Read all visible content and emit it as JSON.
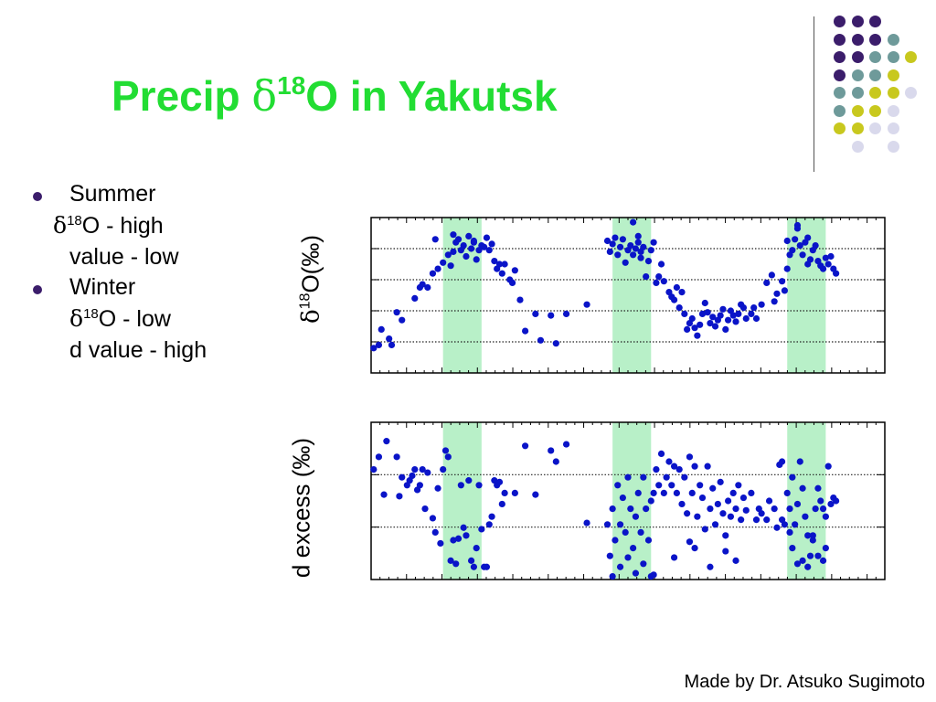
{
  "slide": {
    "title": {
      "prefix": "Precip ",
      "delta": "δ",
      "sup": "18",
      "suffix": "O in Yakutsk"
    },
    "bullets": [
      {
        "label": "Summer",
        "lines": [
          {
            "delta": "δ",
            "sup": "18",
            "text": "O - high"
          },
          {
            "text": "value - low"
          }
        ]
      },
      {
        "label": "Winter",
        "lines": [
          {
            "delta": "δ",
            "sup": "18",
            "text": "O - low"
          },
          {
            "text": "d value - high"
          }
        ]
      }
    ],
    "credit": "Made by Dr. Atsuko Sugimoto",
    "decorative_dot_colors": [
      "#3b1d6b",
      "#6e9a9a",
      "#c8c81e",
      "#d9d9ec"
    ]
  },
  "chart_data": [
    {
      "type": "scatter",
      "ylabel": {
        "delta": "δ",
        "sup": "18",
        "text": "O(‰)"
      },
      "xlim": [
        0,
        100
      ],
      "ylim": [
        0,
        100
      ],
      "grid": "y-dotted",
      "marker_color": "#0a14c8",
      "highlight_color": "#b8f0c8",
      "highlight_x": [
        [
          14,
          21.5
        ],
        [
          47,
          54.5
        ],
        [
          81,
          88.5
        ]
      ],
      "points": [
        [
          0.5,
          16
        ],
        [
          1.5,
          18
        ],
        [
          2,
          28
        ],
        [
          3.5,
          22
        ],
        [
          4,
          18
        ],
        [
          5,
          39
        ],
        [
          6,
          34
        ],
        [
          8.5,
          48
        ],
        [
          9.5,
          55
        ],
        [
          10,
          57
        ],
        [
          11,
          55
        ],
        [
          12,
          64
        ],
        [
          13,
          67
        ],
        [
          14,
          71
        ],
        [
          15,
          76
        ],
        [
          15.5,
          69
        ],
        [
          16,
          78
        ],
        [
          16.5,
          84
        ],
        [
          17,
          86
        ],
        [
          17.5,
          79
        ],
        [
          18,
          82
        ],
        [
          18.5,
          75
        ],
        [
          19,
          88
        ],
        [
          19.5,
          80
        ],
        [
          20,
          84
        ],
        [
          20.5,
          73
        ],
        [
          21,
          79
        ],
        [
          21.5,
          82
        ],
        [
          22,
          81
        ],
        [
          22.5,
          87
        ],
        [
          23,
          79
        ],
        [
          23.5,
          83
        ],
        [
          24,
          72
        ],
        [
          24.5,
          67
        ],
        [
          25,
          70
        ],
        [
          25.5,
          64
        ],
        [
          26,
          70
        ],
        [
          27,
          60
        ],
        [
          27.5,
          58
        ],
        [
          28,
          66
        ],
        [
          12.5,
          86
        ],
        [
          16,
          89
        ],
        [
          20,
          85
        ],
        [
          29,
          47
        ],
        [
          30,
          27
        ],
        [
          32,
          38
        ],
        [
          33,
          21
        ],
        [
          35,
          37
        ],
        [
          36,
          19
        ],
        [
          38,
          38
        ],
        [
          42,
          44
        ],
        [
          46,
          85
        ],
        [
          46.5,
          78
        ],
        [
          47,
          83
        ],
        [
          47.5,
          87
        ],
        [
          48,
          76
        ],
        [
          48.5,
          81
        ],
        [
          49,
          86
        ],
        [
          49.5,
          71
        ],
        [
          50,
          79
        ],
        [
          50.5,
          82
        ],
        [
          51,
          76
        ],
        [
          51.5,
          80
        ],
        [
          52,
          84
        ],
        [
          52.5,
          74
        ],
        [
          53,
          81
        ],
        [
          53.5,
          62
        ],
        [
          54,
          72
        ],
        [
          54.5,
          79
        ],
        [
          55,
          84
        ],
        [
          55.5,
          58
        ],
        [
          56,
          62
        ],
        [
          56.5,
          70
        ],
        [
          57,
          59
        ],
        [
          58,
          52
        ],
        [
          58.5,
          49
        ],
        [
          59,
          47
        ],
        [
          59.5,
          55
        ],
        [
          60,
          42
        ],
        [
          60.5,
          52
        ],
        [
          61,
          38
        ],
        [
          61.5,
          28
        ],
        [
          62,
          32
        ],
        [
          62.5,
          35
        ],
        [
          63,
          29
        ],
        [
          63.5,
          24
        ],
        [
          64,
          31
        ],
        [
          64.5,
          38
        ],
        [
          65,
          45
        ],
        [
          65.5,
          39
        ],
        [
          66,
          32
        ],
        [
          66.5,
          36
        ],
        [
          67,
          30
        ],
        [
          67.5,
          34
        ],
        [
          68,
          37
        ],
        [
          68.5,
          41
        ],
        [
          69,
          28
        ],
        [
          69.5,
          34
        ],
        [
          70,
          40
        ],
        [
          70.5,
          37
        ],
        [
          71,
          33
        ],
        [
          71.5,
          38
        ],
        [
          72,
          44
        ],
        [
          73,
          35
        ],
        [
          74,
          38
        ],
        [
          75,
          35
        ],
        [
          74.5,
          42
        ],
        [
          72.5,
          42
        ],
        [
          51,
          97
        ],
        [
          52,
          88
        ],
        [
          52.5,
          78
        ],
        [
          76,
          44
        ],
        [
          77,
          58
        ],
        [
          78,
          63
        ],
        [
          78.5,
          46
        ],
        [
          79,
          51
        ],
        [
          80,
          59
        ],
        [
          80.5,
          53
        ],
        [
          81,
          67
        ],
        [
          81.5,
          76
        ],
        [
          82,
          79
        ],
        [
          82.5,
          86
        ],
        [
          83,
          93
        ],
        [
          83.5,
          82
        ],
        [
          84,
          76
        ],
        [
          84.5,
          84
        ],
        [
          85,
          87
        ],
        [
          85.5,
          73
        ],
        [
          86,
          79
        ],
        [
          86.5,
          82
        ],
        [
          87,
          72
        ],
        [
          87.5,
          69
        ],
        [
          88,
          67
        ],
        [
          88.5,
          74
        ],
        [
          89,
          70
        ],
        [
          89.5,
          75
        ],
        [
          90,
          67
        ],
        [
          90.5,
          64
        ],
        [
          81,
          85
        ],
        [
          83,
          95
        ],
        [
          85,
          70
        ]
      ]
    },
    {
      "type": "scatter",
      "ylabel": {
        "text": "d excess (‰)"
      },
      "xlim": [
        0,
        100
      ],
      "ylim": [
        0,
        100
      ],
      "grid": "y-dotted",
      "marker_color": "#0a14c8",
      "highlight_color": "#b8f0c8",
      "highlight_x": [
        [
          14,
          21.5
        ],
        [
          47,
          54.5
        ],
        [
          81,
          88.5
        ]
      ],
      "points": [
        [
          0.5,
          70
        ],
        [
          1.5,
          78
        ],
        [
          2.5,
          54
        ],
        [
          3,
          88
        ],
        [
          5,
          78
        ],
        [
          5.5,
          53
        ],
        [
          6,
          65
        ],
        [
          7,
          60
        ],
        [
          7.5,
          63
        ],
        [
          8,
          66
        ],
        [
          8.5,
          70
        ],
        [
          9,
          57
        ],
        [
          9.5,
          60
        ],
        [
          10,
          70
        ],
        [
          10.5,
          45
        ],
        [
          11,
          68
        ],
        [
          12,
          39
        ],
        [
          12.5,
          30
        ],
        [
          13,
          58
        ],
        [
          13.5,
          23
        ],
        [
          14,
          70
        ],
        [
          14.5,
          82
        ],
        [
          15,
          78
        ],
        [
          15.5,
          12
        ],
        [
          16,
          25
        ],
        [
          16.5,
          10
        ],
        [
          17,
          26
        ],
        [
          17.5,
          60
        ],
        [
          18,
          33
        ],
        [
          18.5,
          28
        ],
        [
          19,
          63
        ],
        [
          19.5,
          12
        ],
        [
          20,
          8
        ],
        [
          20.5,
          20
        ],
        [
          21,
          60
        ],
        [
          21.5,
          32
        ],
        [
          22,
          8
        ],
        [
          22.5,
          8
        ],
        [
          23,
          35
        ],
        [
          23.5,
          40
        ],
        [
          24,
          63
        ],
        [
          24.5,
          60
        ],
        [
          25,
          62
        ],
        [
          25.5,
          48
        ],
        [
          26,
          55
        ],
        [
          28,
          55
        ],
        [
          30,
          85
        ],
        [
          32,
          54
        ],
        [
          35,
          82
        ],
        [
          36,
          75
        ],
        [
          38,
          86
        ],
        [
          42,
          36
        ],
        [
          46,
          35
        ],
        [
          46.5,
          15
        ],
        [
          47,
          45
        ],
        [
          47.5,
          25
        ],
        [
          48,
          60
        ],
        [
          48.5,
          35
        ],
        [
          49,
          52
        ],
        [
          49.5,
          30
        ],
        [
          50,
          65
        ],
        [
          50.5,
          45
        ],
        [
          51,
          20
        ],
        [
          51.5,
          40
        ],
        [
          52,
          55
        ],
        [
          52.5,
          30
        ],
        [
          53,
          65
        ],
        [
          53.5,
          45
        ],
        [
          54,
          25
        ],
        [
          54.5,
          50
        ],
        [
          55,
          55
        ],
        [
          55.5,
          70
        ],
        [
          56,
          60
        ],
        [
          56.5,
          80
        ],
        [
          57,
          55
        ],
        [
          57.5,
          65
        ],
        [
          58,
          75
        ],
        [
          58.5,
          60
        ],
        [
          59,
          72
        ],
        [
          59.5,
          55
        ],
        [
          60,
          70
        ],
        [
          60.5,
          48
        ],
        [
          61,
          65
        ],
        [
          61.5,
          42
        ],
        [
          62,
          78
        ],
        [
          62.5,
          55
        ],
        [
          63,
          72
        ],
        [
          63.5,
          40
        ],
        [
          64,
          60
        ],
        [
          64.5,
          52
        ],
        [
          65,
          32
        ],
        [
          65.5,
          72
        ],
        [
          66,
          45
        ],
        [
          66.5,
          58
        ],
        [
          67,
          35
        ],
        [
          67.5,
          48
        ],
        [
          68,
          62
        ],
        [
          68.5,
          42
        ],
        [
          69,
          28
        ],
        [
          69.5,
          50
        ],
        [
          70,
          40
        ],
        [
          70.5,
          55
        ],
        [
          71,
          45
        ],
        [
          71.5,
          60
        ],
        [
          72,
          38
        ],
        [
          72.5,
          52
        ],
        [
          73,
          44
        ],
        [
          74,
          55
        ],
        [
          75,
          38
        ],
        [
          47,
          2
        ],
        [
          48.5,
          8
        ],
        [
          50,
          14
        ],
        [
          51.5,
          4
        ],
        [
          53,
          10
        ],
        [
          54.5,
          2
        ],
        [
          55,
          3
        ],
        [
          59,
          14
        ],
        [
          62,
          24
        ],
        [
          63,
          20
        ],
        [
          66,
          8
        ],
        [
          69,
          18
        ],
        [
          71,
          12
        ],
        [
          75.5,
          45
        ],
        [
          76,
          42
        ],
        [
          77,
          38
        ],
        [
          77.5,
          50
        ],
        [
          78.5,
          45
        ],
        [
          79,
          33
        ],
        [
          79.5,
          73
        ],
        [
          80,
          75
        ],
        [
          80.5,
          35
        ],
        [
          81,
          55
        ],
        [
          81.5,
          45
        ],
        [
          82,
          65
        ],
        [
          82.5,
          35
        ],
        [
          83,
          48
        ],
        [
          83.5,
          75
        ],
        [
          84,
          58
        ],
        [
          84.5,
          40
        ],
        [
          85,
          28
        ],
        [
          85.5,
          15
        ],
        [
          86,
          25
        ],
        [
          86.5,
          45
        ],
        [
          87,
          58
        ],
        [
          87.5,
          50
        ],
        [
          88,
          45
        ],
        [
          88.5,
          40
        ],
        [
          89,
          72
        ],
        [
          89.5,
          48
        ],
        [
          90,
          52
        ],
        [
          90.5,
          50
        ],
        [
          82,
          20
        ],
        [
          83,
          10
        ],
        [
          85,
          8
        ],
        [
          87,
          15
        ],
        [
          88,
          12
        ],
        [
          80,
          38
        ],
        [
          81.5,
          30
        ],
        [
          86,
          28
        ],
        [
          88.5,
          20
        ],
        [
          84,
          12
        ]
      ]
    }
  ]
}
